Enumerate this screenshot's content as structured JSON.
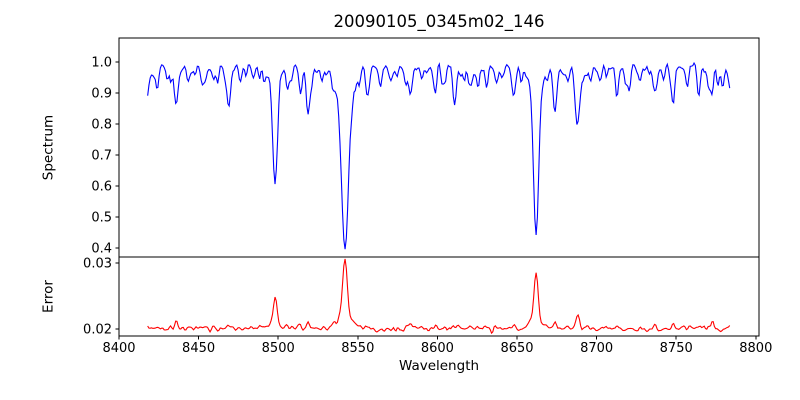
{
  "figure": {
    "title": "20090105_0345m02_146",
    "background_color": "#ffffff",
    "frame_color": "#000000"
  },
  "chart_data": {
    "type": "line",
    "title": "20090105_0345m02_146",
    "xlabel": "Wavelength",
    "xlim": [
      8400,
      8802
    ],
    "xticks": [
      8400,
      8450,
      8500,
      8550,
      8600,
      8650,
      8700,
      8750,
      8800
    ],
    "x_start": 8418,
    "x_end": 8784,
    "x_step": 0.8,
    "grid": false,
    "legend": false,
    "strong_lines_angstrom": [
      8498,
      8542,
      8662
    ],
    "panels": [
      {
        "name": "spectrum",
        "ylabel": "Spectrum",
        "color": "#0000ff",
        "ylim": [
          0.371,
          1.0774
        ],
        "yticks": [
          1.0,
          0.9,
          0.8,
          0.7,
          0.6,
          0.5,
          0.4
        ],
        "tick_decimals": 1,
        "continuum": 0.985,
        "noise_sigma": 0.011,
        "dip_probability": 0.25,
        "dip_max_depth": 0.075,
        "absorption_lines": [
          [
            8419,
            0.05,
            2.0
          ],
          [
            8424,
            0.035,
            0.9
          ],
          [
            8430,
            0.03,
            0.9
          ],
          [
            8436,
            0.11,
            1.1
          ],
          [
            8444,
            0.04,
            0.9
          ],
          [
            8452,
            0.05,
            1.0
          ],
          [
            8462,
            0.04,
            0.9
          ],
          [
            8469,
            0.1,
            1.2
          ],
          [
            8476,
            0.04,
            0.9
          ],
          [
            8484,
            0.03,
            0.9
          ],
          [
            8498,
            0.355,
            1.4
          ],
          [
            8498,
            0.03,
            4.5
          ],
          [
            8507,
            0.04,
            0.9
          ],
          [
            8514,
            0.1,
            1.0
          ],
          [
            8519,
            0.14,
            1.1
          ],
          [
            8527,
            0.035,
            0.9
          ],
          [
            8536,
            0.04,
            0.9
          ],
          [
            8542,
            0.538,
            2.2
          ],
          [
            8542,
            0.05,
            7.0
          ],
          [
            8556,
            0.07,
            1.0
          ],
          [
            8564,
            0.04,
            0.9
          ],
          [
            8571,
            0.035,
            0.9
          ],
          [
            8583,
            0.085,
            1.1
          ],
          [
            8590,
            0.04,
            0.9
          ],
          [
            8598,
            0.055,
            1.0
          ],
          [
            8604,
            0.035,
            0.9
          ],
          [
            8611,
            0.1,
            1.1
          ],
          [
            8617,
            0.04,
            0.9
          ],
          [
            8621,
            0.055,
            1.0
          ],
          [
            8631,
            0.05,
            1.0
          ],
          [
            8637,
            0.035,
            0.9
          ],
          [
            8648,
            0.09,
            1.2
          ],
          [
            8662,
            0.505,
            1.6
          ],
          [
            8662,
            0.04,
            5.5
          ],
          [
            8674,
            0.125,
            1.2
          ],
          [
            8682,
            0.05,
            0.9
          ],
          [
            8688,
            0.19,
            1.3
          ],
          [
            8696,
            0.04,
            0.9
          ],
          [
            8702,
            0.05,
            1.0
          ],
          [
            8713,
            0.08,
            1.1
          ],
          [
            8719,
            0.045,
            0.9
          ],
          [
            8727,
            0.05,
            1.0
          ],
          [
            8736,
            0.065,
            1.0
          ],
          [
            8742,
            0.04,
            0.9
          ],
          [
            8748,
            0.09,
            1.2
          ],
          [
            8757,
            0.055,
            1.0
          ],
          [
            8764,
            0.04,
            0.9
          ],
          [
            8772,
            0.065,
            1.0
          ],
          [
            8779,
            0.05,
            1.0
          ]
        ]
      },
      {
        "name": "error",
        "ylabel": "Error",
        "color": "#ff0000",
        "ylim": [
          0.01894,
          0.03091
        ],
        "yticks": [
          0.03,
          0.02
        ],
        "tick_decimals": 2,
        "baseline": 0.02,
        "noise_sigma": 0.00033,
        "emission_peaks": [
          [
            8436,
            0.001,
            1.0
          ],
          [
            8452,
            0.0005,
            0.9
          ],
          [
            8469,
            0.0007,
            1.0
          ],
          [
            8498,
            0.004,
            1.1
          ],
          [
            8498,
            0.0007,
            3.5
          ],
          [
            8514,
            0.0006,
            0.9
          ],
          [
            8519,
            0.0009,
            1.0
          ],
          [
            8542,
            0.0088,
            1.5
          ],
          [
            8542,
            0.0013,
            5.5
          ],
          [
            8556,
            0.0006,
            1.0
          ],
          [
            8583,
            0.0007,
            1.0
          ],
          [
            8611,
            0.0006,
            1.0
          ],
          [
            8648,
            0.0006,
            1.1
          ],
          [
            8662,
            0.0073,
            1.3
          ],
          [
            8662,
            0.0011,
            4.5
          ],
          [
            8674,
            0.0008,
            1.0
          ],
          [
            8688,
            0.0018,
            1.2
          ],
          [
            8713,
            0.0006,
            1.0
          ],
          [
            8736,
            0.0005,
            1.0
          ],
          [
            8748,
            0.0007,
            1.0
          ],
          [
            8772,
            0.0005,
            1.0
          ]
        ]
      }
    ]
  }
}
